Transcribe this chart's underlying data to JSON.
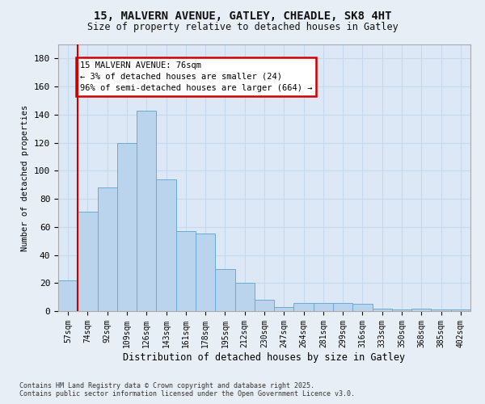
{
  "title_line1": "15, MALVERN AVENUE, GATLEY, CHEADLE, SK8 4HT",
  "title_line2": "Size of property relative to detached houses in Gatley",
  "xlabel": "Distribution of detached houses by size in Gatley",
  "ylabel": "Number of detached properties",
  "categories": [
    "57sqm",
    "74sqm",
    "92sqm",
    "109sqm",
    "126sqm",
    "143sqm",
    "161sqm",
    "178sqm",
    "195sqm",
    "212sqm",
    "230sqm",
    "247sqm",
    "264sqm",
    "281sqm",
    "299sqm",
    "316sqm",
    "333sqm",
    "350sqm",
    "368sqm",
    "385sqm",
    "402sqm"
  ],
  "bar_heights": [
    22,
    71,
    88,
    120,
    143,
    94,
    57,
    55,
    30,
    20,
    8,
    3,
    6,
    6,
    6,
    5,
    2,
    1,
    2,
    1,
    1
  ],
  "bar_color": "#bad4ed",
  "bar_edge_color": "#6aaad4",
  "grid_color": "#c8d8ec",
  "vline_color": "#cc0000",
  "annotation_text": "15 MALVERN AVENUE: 76sqm\n← 3% of detached houses are smaller (24)\n96% of semi-detached houses are larger (664) →",
  "annotation_box_color": "#cc0000",
  "ylim": [
    0,
    190
  ],
  "yticks": [
    0,
    20,
    40,
    60,
    80,
    100,
    120,
    140,
    160,
    180
  ],
  "footer_line1": "Contains HM Land Registry data © Crown copyright and database right 2025.",
  "footer_line2": "Contains public sector information licensed under the Open Government Licence v3.0.",
  "bg_color": "#e8eef5",
  "plot_bg_color": "#dce8f5"
}
